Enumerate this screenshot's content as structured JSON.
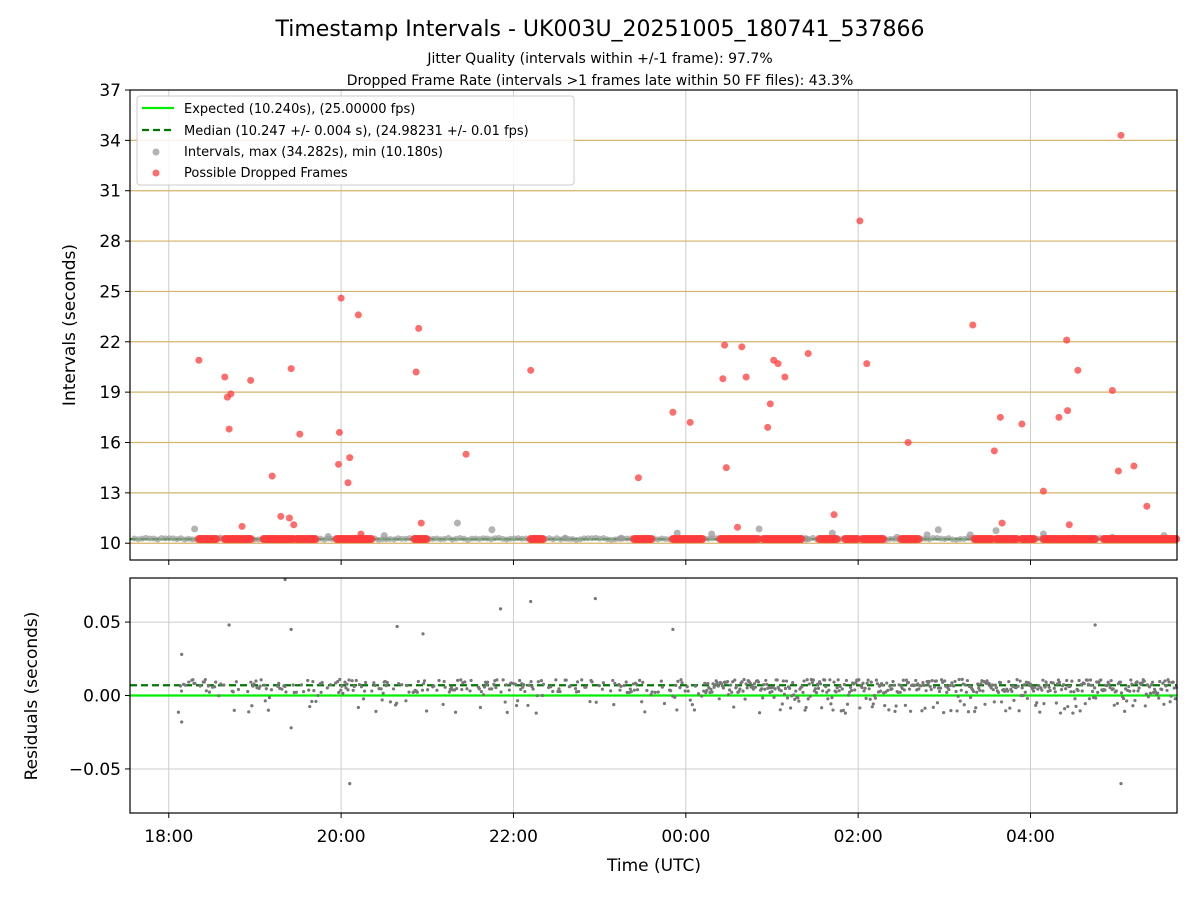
{
  "title": "Timestamp Intervals - UK003U_20251005_180741_537866",
  "subtitle1": "Jitter Quality (intervals within +/-1 frame): 97.7%",
  "subtitle2": "Dropped Frame Rate (intervals >1 frames late within 50 FF files): 43.3%",
  "colors": {
    "expected": "#00ee00",
    "median": "#007700",
    "interval": "#999999",
    "dropped": "#ff3b3b",
    "residual": "#777777",
    "hgrid": "#d4b56a",
    "grid": "#cccccc"
  },
  "chart_data": [
    {
      "type": "scatter",
      "name": "intervals",
      "ylabel": "Intervals (seconds)",
      "xlabel": "",
      "xlim_hours": [
        17.55,
        29.7
      ],
      "ylim": [
        9.0,
        37.0
      ],
      "yticks": [
        10,
        13,
        16,
        19,
        22,
        25,
        28,
        31,
        34,
        37
      ],
      "ytick_labels": [
        "10",
        "13",
        "16",
        "19",
        "22",
        "25",
        "28",
        "31",
        "34",
        "37"
      ],
      "xticks_hours": [
        18,
        20,
        22,
        24,
        26,
        28
      ],
      "expected": 10.24,
      "median": 10.247,
      "legend_position": "upper-left",
      "legend": [
        "Expected (10.240s), (25.00000 fps)",
        "Median (10.247 +/- 0.004 s), (24.98231 +/- 0.01 fps)",
        "Intervals, max (34.282s), min (10.180s)",
        "Possible Dropped Frames"
      ],
      "intervals": [
        [
          18.3,
          10.85
        ],
        [
          18.6,
          10.3
        ],
        [
          19.2,
          10.25
        ],
        [
          19.85,
          10.4
        ],
        [
          20.5,
          10.45
        ],
        [
          21.35,
          11.2
        ],
        [
          21.75,
          10.8
        ],
        [
          22.6,
          10.3
        ],
        [
          23.25,
          10.3
        ],
        [
          23.9,
          10.6
        ],
        [
          24.3,
          10.55
        ],
        [
          24.85,
          10.85
        ],
        [
          25.4,
          10.25
        ],
        [
          25.7,
          10.6
        ],
        [
          26.1,
          10.25
        ],
        [
          26.45,
          10.35
        ],
        [
          26.8,
          10.5
        ],
        [
          26.93,
          10.8
        ],
        [
          27.3,
          10.5
        ],
        [
          27.6,
          10.75
        ],
        [
          28.15,
          10.55
        ],
        [
          28.5,
          10.3
        ],
        [
          28.95,
          10.35
        ],
        [
          29.55,
          10.45
        ]
      ],
      "dropped_points": [
        [
          18.35,
          20.9
        ],
        [
          18.65,
          19.9
        ],
        [
          18.68,
          18.7
        ],
        [
          18.72,
          18.9
        ],
        [
          18.7,
          16.8
        ],
        [
          18.85,
          11.0
        ],
        [
          18.95,
          19.7
        ],
        [
          19.2,
          14.0
        ],
        [
          19.3,
          11.6
        ],
        [
          19.4,
          11.5
        ],
        [
          19.42,
          20.4
        ],
        [
          19.45,
          11.1
        ],
        [
          19.52,
          16.5
        ],
        [
          19.97,
          14.7
        ],
        [
          19.98,
          16.6
        ],
        [
          20.0,
          24.6
        ],
        [
          20.08,
          13.6
        ],
        [
          20.1,
          15.1
        ],
        [
          20.2,
          23.6
        ],
        [
          20.23,
          10.55
        ],
        [
          20.87,
          20.2
        ],
        [
          20.9,
          22.8
        ],
        [
          20.93,
          11.2
        ],
        [
          21.45,
          15.3
        ],
        [
          22.2,
          20.3
        ],
        [
          23.45,
          13.9
        ],
        [
          23.85,
          17.8
        ],
        [
          24.05,
          17.2
        ],
        [
          24.45,
          21.8
        ],
        [
          24.43,
          19.8
        ],
        [
          24.47,
          14.5
        ],
        [
          24.6,
          10.95
        ],
        [
          24.65,
          21.7
        ],
        [
          24.7,
          19.9
        ],
        [
          24.95,
          16.9
        ],
        [
          24.98,
          18.3
        ],
        [
          25.02,
          20.9
        ],
        [
          25.07,
          20.7
        ],
        [
          25.15,
          19.9
        ],
        [
          25.42,
          21.3
        ],
        [
          25.72,
          11.7
        ],
        [
          26.02,
          29.2
        ],
        [
          26.1,
          20.7
        ],
        [
          26.58,
          16.0
        ],
        [
          27.33,
          23.0
        ],
        [
          27.58,
          15.5
        ],
        [
          27.65,
          17.5
        ],
        [
          27.67,
          11.2
        ],
        [
          27.9,
          17.1
        ],
        [
          28.15,
          13.1
        ],
        [
          28.33,
          17.5
        ],
        [
          28.42,
          22.1
        ],
        [
          28.43,
          17.9
        ],
        [
          28.45,
          11.1
        ],
        [
          28.55,
          20.3
        ],
        [
          28.95,
          19.1
        ],
        [
          29.02,
          14.3
        ],
        [
          29.05,
          34.3
        ],
        [
          29.2,
          14.6
        ],
        [
          29.35,
          12.2
        ]
      ],
      "dropped_baseline_ranges": [
        [
          18.35,
          18.55
        ],
        [
          18.65,
          18.95
        ],
        [
          19.1,
          19.45
        ],
        [
          19.48,
          19.7
        ],
        [
          19.95,
          20.35
        ],
        [
          20.85,
          21.0
        ],
        [
          22.2,
          22.35
        ],
        [
          23.4,
          23.6
        ],
        [
          23.85,
          24.2
        ],
        [
          24.4,
          24.85
        ],
        [
          24.9,
          25.35
        ],
        [
          25.55,
          25.75
        ],
        [
          25.85,
          26.0
        ],
        [
          26.05,
          26.3
        ],
        [
          26.5,
          26.7
        ],
        [
          27.35,
          27.55
        ],
        [
          27.6,
          27.85
        ],
        [
          27.9,
          28.05
        ],
        [
          28.15,
          28.75
        ],
        [
          28.85,
          29.7
        ]
      ]
    },
    {
      "type": "scatter",
      "name": "residuals",
      "ylabel": "Residuals (seconds)",
      "xlabel": "Time (UTC)",
      "xlim_hours": [
        17.55,
        29.7
      ],
      "ylim": [
        -0.08,
        0.08
      ],
      "yticks": [
        -0.05,
        0.0,
        0.05
      ],
      "ytick_labels": [
        "−0.05",
        "0.00",
        "0.05"
      ],
      "xticks_hours": [
        18,
        20,
        22,
        24,
        26,
        28
      ],
      "xtick_labels": [
        "18:00",
        "20:00",
        "22:00",
        "00:00",
        "02:00",
        "04:00"
      ],
      "expected": 0.0,
      "median": 0.007,
      "outliers": [
        [
          18.15,
          0.028
        ],
        [
          18.15,
          -0.018
        ],
        [
          18.7,
          0.048
        ],
        [
          19.35,
          0.079
        ],
        [
          19.42,
          0.045
        ],
        [
          19.42,
          -0.022
        ],
        [
          20.1,
          -0.06
        ],
        [
          20.65,
          0.047
        ],
        [
          20.95,
          0.042
        ],
        [
          21.85,
          0.059
        ],
        [
          22.2,
          0.064
        ],
        [
          22.95,
          0.066
        ],
        [
          23.85,
          0.045
        ],
        [
          28.75,
          0.048
        ],
        [
          29.05,
          -0.06
        ]
      ]
    }
  ]
}
